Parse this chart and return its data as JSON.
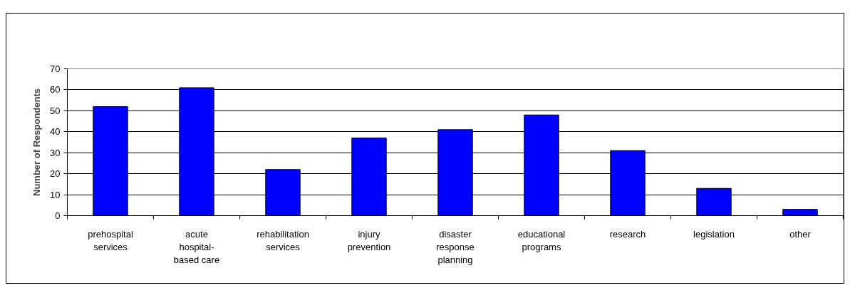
{
  "chart_data": {
    "type": "bar",
    "ylabel": "Number of Respondents",
    "categories": [
      "prehospital services",
      "acute hospital-based care",
      "rehabilitation services",
      "injury prevention",
      "disaster response planning",
      "educational programs",
      "research",
      "legislation",
      "other"
    ],
    "values": [
      52,
      61,
      22,
      37,
      41,
      48,
      31,
      13,
      3
    ],
    "color": "#0000ff",
    "ylim": [
      0,
      70
    ],
    "yticks": [
      0,
      10,
      20,
      30,
      40,
      50,
      60,
      70
    ],
    "grid": "y"
  }
}
